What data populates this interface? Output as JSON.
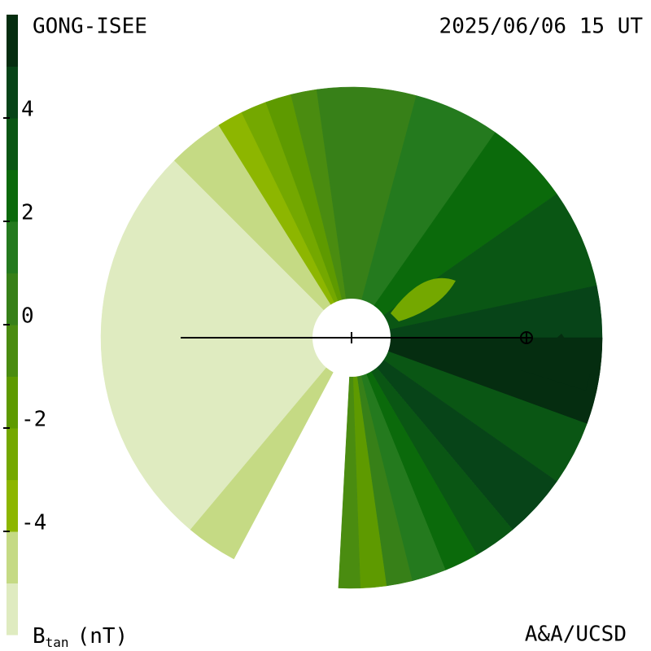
{
  "chart_data": {
    "type": "contour",
    "title": "GONG-ISEE",
    "subtitle": "2025/06/06 15 UT",
    "credit": "A&A/UCSD",
    "colorbar": {
      "label": "B",
      "label_sub": "tan",
      "label_unit": "(nT)",
      "lim": [
        -6,
        6
      ],
      "ticks": [
        4,
        2,
        0,
        -2,
        -4
      ],
      "colors": [
        "#dfebc0",
        "#c5da84",
        "#8db600",
        "#74a800",
        "#5e9a00",
        "#4a8c10",
        "#378018",
        "#247a1e",
        "#0b6a0b",
        "#0a5614",
        "#074418",
        "#052d10"
      ]
    }
  }
}
